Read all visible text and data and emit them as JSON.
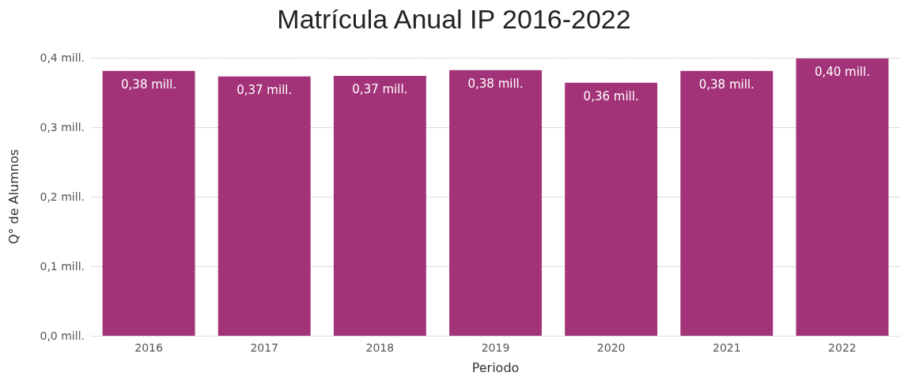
{
  "chart_data": {
    "type": "bar",
    "title": "Matrícula Anual IP 2016-2022",
    "xlabel": "Periodo",
    "ylabel": "Q° de Alumnos",
    "categories": [
      "2016",
      "2017",
      "2018",
      "2019",
      "2020",
      "2021",
      "2022"
    ],
    "values": [
      0.381,
      0.373,
      0.374,
      0.382,
      0.364,
      0.381,
      0.399
    ],
    "value_labels": [
      "0,38 mill.",
      "0,37 mill.",
      "0,37 mill.",
      "0,38 mill.",
      "0,36 mill.",
      "0,38 mill.",
      "0,40 mill."
    ],
    "color": "#a33378",
    "ylim": [
      0,
      0.4
    ],
    "yticks": [
      {
        "value": 0,
        "label": "0,0 mill."
      },
      {
        "value": 0.1,
        "label": "0,1 mill."
      },
      {
        "value": 0.2,
        "label": "0,2 mill."
      },
      {
        "value": 0.3,
        "label": "0,3 mill."
      },
      {
        "value": 0.4,
        "label": "0,4 mill."
      }
    ],
    "grid": "y"
  }
}
